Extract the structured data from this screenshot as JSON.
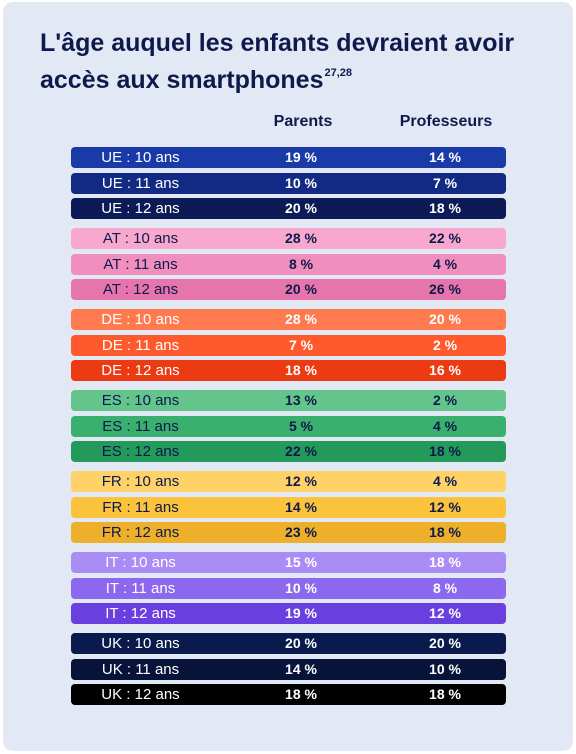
{
  "title": "L'âge auquel les enfants devraient avoir accès aux smartphones",
  "title_sup": "27,28",
  "columns": [
    "Parents",
    "Professeurs"
  ],
  "chart_data": {
    "type": "table",
    "title": "L'âge auquel les enfants devraient avoir accès aux smartphones",
    "columns": [
      "Parents",
      "Professeurs"
    ],
    "groups": [
      {
        "country": "UE",
        "rows": [
          {
            "label": "UE : 10 ans",
            "parents": "19 %",
            "professeurs": "14 %",
            "bg": "#1a3aa7",
            "fg": "#ffffff"
          },
          {
            "label": "UE : 11 ans",
            "parents": "10 %",
            "professeurs": "7 %",
            "bg": "#132a84",
            "fg": "#ffffff"
          },
          {
            "label": "UE : 12 ans",
            "parents": "20 %",
            "professeurs": "18 %",
            "bg": "#0c1a55",
            "fg": "#ffffff"
          }
        ]
      },
      {
        "country": "AT",
        "rows": [
          {
            "label": "AT : 10 ans",
            "parents": "28 %",
            "professeurs": "22 %",
            "bg": "#f7a8cc",
            "fg": "#0e1a4c"
          },
          {
            "label": "AT : 11 ans",
            "parents": "8 %",
            "professeurs": "4 %",
            "bg": "#f08fbd",
            "fg": "#0e1a4c"
          },
          {
            "label": "AT : 12 ans",
            "parents": "20 %",
            "professeurs": "26 %",
            "bg": "#e675ab",
            "fg": "#0e1a4c"
          }
        ]
      },
      {
        "country": "DE",
        "rows": [
          {
            "label": "DE : 10 ans",
            "parents": "28 %",
            "professeurs": "20 %",
            "bg": "#ff7a4f",
            "fg": "#ffffff"
          },
          {
            "label": "DE : 11 ans",
            "parents": "7 %",
            "professeurs": "2 %",
            "bg": "#ff5a2e",
            "fg": "#ffffff"
          },
          {
            "label": "DE : 12 ans",
            "parents": "18 %",
            "professeurs": "16 %",
            "bg": "#ec3a12",
            "fg": "#ffffff"
          }
        ]
      },
      {
        "country": "ES",
        "rows": [
          {
            "label": "ES : 10 ans",
            "parents": "13 %",
            "professeurs": "2 %",
            "bg": "#63c48c",
            "fg": "#0e1a4c"
          },
          {
            "label": "ES : 11 ans",
            "parents": "5 %",
            "professeurs": "4 %",
            "bg": "#3ab06e",
            "fg": "#0e1a4c"
          },
          {
            "label": "ES : 12 ans",
            "parents": "22 %",
            "professeurs": "18 %",
            "bg": "#239a5a",
            "fg": "#0e1a4c"
          }
        ]
      },
      {
        "country": "FR",
        "rows": [
          {
            "label": "FR : 10 ans",
            "parents": "12 %",
            "professeurs": "4 %",
            "bg": "#ffd268",
            "fg": "#0e1a4c"
          },
          {
            "label": "FR : 11 ans",
            "parents": "14 %",
            "professeurs": "12 %",
            "bg": "#fbc33c",
            "fg": "#0e1a4c"
          },
          {
            "label": "FR : 12 ans",
            "parents": "23 %",
            "professeurs": "18 %",
            "bg": "#eeb02a",
            "fg": "#0e1a4c"
          }
        ]
      },
      {
        "country": "IT",
        "rows": [
          {
            "label": "IT : 10 ans",
            "parents": "15 %",
            "professeurs": "18 %",
            "bg": "#a98df5",
            "fg": "#ffffff"
          },
          {
            "label": "IT : 11 ans",
            "parents": "10 %",
            "professeurs": "8 %",
            "bg": "#8c68ef",
            "fg": "#ffffff"
          },
          {
            "label": "IT : 12 ans",
            "parents": "19 %",
            "professeurs": "12 %",
            "bg": "#6a3fe0",
            "fg": "#ffffff"
          }
        ]
      },
      {
        "country": "UK",
        "rows": [
          {
            "label": "UK : 10 ans",
            "parents": "20 %",
            "professeurs": "20 %",
            "bg": "#0b1a4d",
            "fg": "#ffffff"
          },
          {
            "label": "UK : 11 ans",
            "parents": "14 %",
            "professeurs": "10 %",
            "bg": "#08133a",
            "fg": "#ffffff"
          },
          {
            "label": "UK : 12 ans",
            "parents": "18 %",
            "professeurs": "18 %",
            "bg": "#000000",
            "fg": "#ffffff"
          }
        ]
      }
    ]
  }
}
